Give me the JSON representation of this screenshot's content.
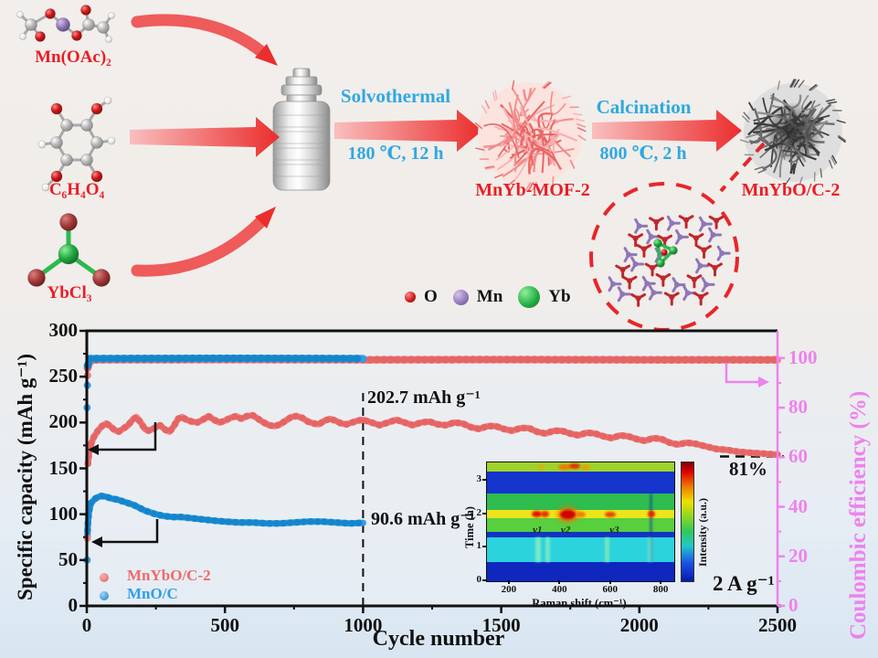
{
  "scheme": {
    "reactants": [
      {
        "label": "Mn(OAc)₂"
      },
      {
        "label": "C₆H₄O₄"
      },
      {
        "label": "YbCl₃"
      }
    ],
    "steps": [
      {
        "name": "Solvothermal",
        "condition": "180 ℃, 12 h"
      },
      {
        "name": "Calcination",
        "condition": "800 ℃, 2 h"
      }
    ],
    "products": [
      {
        "label": "MnYb-MOF-2"
      },
      {
        "label": "MnYbO/C-2"
      }
    ],
    "atom_legend": [
      {
        "symbol": "O",
        "color": "#c1272d"
      },
      {
        "symbol": "Mn",
        "color": "#8f76b8"
      },
      {
        "symbol": "Yb",
        "color": "#2db94d"
      }
    ],
    "colors": {
      "label_red": "#ec1c24",
      "step_blue": "#2fa8e1",
      "arrow_red": "#eb2d2d",
      "dashed_red": "#e8252a"
    }
  },
  "chart_data": {
    "type": "scatter",
    "xlabel": "Cycle number",
    "ylabel_left": "Specific capacity (mAh g⁻¹)",
    "ylabel_right": "Coulombic efficiency (%)",
    "xlim": [
      0,
      2500
    ],
    "ylim_left": [
      0,
      300
    ],
    "ylim_right": [
      0,
      111
    ],
    "xticks": [
      0,
      500,
      1000,
      1500,
      2000,
      2500
    ],
    "yticks_left": [
      0,
      50,
      100,
      150,
      200,
      250,
      300
    ],
    "yticks_right": [
      0,
      20,
      40,
      60,
      80,
      100
    ],
    "grid": false,
    "legend_position": "lower-left",
    "colors": {
      "salmon": "#f28484",
      "salmon_dark": "#e35f5f",
      "blue": "#2d9fe8",
      "blue_dark": "#1380c6",
      "right_axis": "#ee82ee"
    },
    "legend": [
      {
        "label": "MnYbO/C-2",
        "color": "#f28484"
      },
      {
        "label": "MnO/C",
        "color": "#2d9fe8"
      }
    ],
    "annotations": [
      {
        "text": "202.7 mAh g⁻¹"
      },
      {
        "text": "90.6 mAh g⁻¹"
      },
      {
        "text": "81%"
      },
      {
        "text": "2 A g⁻¹"
      }
    ],
    "series": [
      {
        "name": "MnYbO/C-2 capacity",
        "axis": "left",
        "color": "#f28484",
        "points": [
          [
            4,
            155
          ],
          [
            8,
            166
          ],
          [
            15,
            176
          ],
          [
            25,
            184
          ],
          [
            40,
            191
          ],
          [
            55,
            196
          ],
          [
            70,
            199
          ],
          [
            85,
            196
          ],
          [
            100,
            192
          ],
          [
            115,
            190
          ],
          [
            130,
            193
          ],
          [
            150,
            197
          ],
          [
            165,
            203
          ],
          [
            180,
            206
          ],
          [
            195,
            200
          ],
          [
            210,
            193
          ],
          [
            225,
            191
          ],
          [
            245,
            194
          ],
          [
            265,
            197
          ],
          [
            285,
            192
          ],
          [
            300,
            190
          ],
          [
            315,
            196
          ],
          [
            330,
            204
          ],
          [
            345,
            206
          ],
          [
            360,
            203
          ],
          [
            380,
            201
          ],
          [
            400,
            200
          ],
          [
            420,
            203
          ],
          [
            440,
            207
          ],
          [
            460,
            203
          ],
          [
            480,
            200
          ],
          [
            500,
            202
          ],
          [
            520,
            205
          ],
          [
            540,
            207
          ],
          [
            560,
            204
          ],
          [
            580,
            207
          ],
          [
            600,
            208
          ],
          [
            620,
            204
          ],
          [
            640,
            200
          ],
          [
            660,
            197
          ],
          [
            680,
            196
          ],
          [
            700,
            198
          ],
          [
            720,
            202
          ],
          [
            740,
            206
          ],
          [
            760,
            207
          ],
          [
            780,
            205
          ],
          [
            800,
            201
          ],
          [
            820,
            199
          ],
          [
            840,
            198
          ],
          [
            860,
            202
          ],
          [
            880,
            204
          ],
          [
            900,
            202
          ],
          [
            920,
            199
          ],
          [
            940,
            198
          ],
          [
            960,
            200
          ],
          [
            980,
            202
          ],
          [
            1000,
            203
          ],
          [
            1030,
            200
          ],
          [
            1060,
            197
          ],
          [
            1090,
            200
          ],
          [
            1120,
            203
          ],
          [
            1150,
            200
          ],
          [
            1180,
            197
          ],
          [
            1210,
            200
          ],
          [
            1240,
            201
          ],
          [
            1270,
            198
          ],
          [
            1300,
            197
          ],
          [
            1330,
            200
          ],
          [
            1360,
            199
          ],
          [
            1390,
            195
          ],
          [
            1420,
            193
          ],
          [
            1450,
            196
          ],
          [
            1480,
            196
          ],
          [
            1510,
            193
          ],
          [
            1540,
            191
          ],
          [
            1570,
            194
          ],
          [
            1600,
            194
          ],
          [
            1630,
            190
          ],
          [
            1660,
            188
          ],
          [
            1690,
            191
          ],
          [
            1720,
            191
          ],
          [
            1750,
            188
          ],
          [
            1780,
            186
          ],
          [
            1810,
            189
          ],
          [
            1840,
            188
          ],
          [
            1870,
            185
          ],
          [
            1900,
            183
          ],
          [
            1930,
            186
          ],
          [
            1960,
            185
          ],
          [
            1990,
            182
          ],
          [
            2020,
            180
          ],
          [
            2050,
            183
          ],
          [
            2080,
            182
          ],
          [
            2110,
            178
          ],
          [
            2140,
            176
          ],
          [
            2170,
            178
          ],
          [
            2200,
            177
          ],
          [
            2240,
            174
          ],
          [
            2280,
            171
          ],
          [
            2320,
            170
          ],
          [
            2360,
            168
          ],
          [
            2400,
            167
          ],
          [
            2450,
            166
          ],
          [
            2500,
            165
          ]
        ]
      },
      {
        "name": "MnO/C capacity",
        "axis": "left",
        "color": "#2d9fe8",
        "points": [
          [
            2,
            75
          ],
          [
            4,
            90
          ],
          [
            8,
            103
          ],
          [
            15,
            112
          ],
          [
            30,
            117
          ],
          [
            50,
            120
          ],
          [
            70,
            119
          ],
          [
            90,
            117
          ],
          [
            110,
            116
          ],
          [
            130,
            114
          ],
          [
            150,
            112
          ],
          [
            170,
            110
          ],
          [
            190,
            107
          ],
          [
            210,
            104
          ],
          [
            230,
            102
          ],
          [
            250,
            100
          ],
          [
            280,
            98
          ],
          [
            310,
            97
          ],
          [
            340,
            97
          ],
          [
            370,
            96
          ],
          [
            400,
            95
          ],
          [
            430,
            94
          ],
          [
            460,
            93
          ],
          [
            500,
            92
          ],
          [
            550,
            91
          ],
          [
            600,
            91
          ],
          [
            650,
            90
          ],
          [
            700,
            90
          ],
          [
            750,
            91
          ],
          [
            800,
            92
          ],
          [
            850,
            92
          ],
          [
            900,
            91
          ],
          [
            950,
            90
          ],
          [
            1000,
            90.6
          ]
        ]
      },
      {
        "name": "MnYbO/C-2 coulombic efficiency",
        "axis": "right",
        "color": "#f28484",
        "points": [
          [
            3,
            96
          ],
          [
            15,
            99.3
          ],
          [
            500,
            99.4
          ],
          [
            1000,
            99.3
          ],
          [
            1500,
            99.4
          ],
          [
            2000,
            99.3
          ],
          [
            2500,
            99.3
          ]
        ]
      },
      {
        "name": "MnO/C coulombic efficiency",
        "axis": "right",
        "color": "#2d9fe8",
        "points": [
          [
            3,
            97
          ],
          [
            12,
            99.8
          ],
          [
            500,
            99.9
          ],
          [
            1000,
            99.8
          ]
        ]
      }
    ],
    "scatter_extra": [
      {
        "axis": "left",
        "color": "#f28484",
        "points": [
          [
            2,
            74
          ]
        ]
      },
      {
        "axis": "left",
        "color": "#2d9fe8",
        "points": [
          [
            1,
            50
          ]
        ]
      },
      {
        "axis": "right",
        "color": "#f28484",
        "points": [
          [
            3,
            93
          ]
        ]
      },
      {
        "axis": "right",
        "color": "#2d9fe8",
        "points": [
          [
            1,
            80
          ],
          [
            2,
            89
          ]
        ]
      }
    ],
    "guides": {
      "vline_x": 1000,
      "hline_y_left": 163
    }
  },
  "inset": {
    "type": "heatmap",
    "xlabel": "Raman shift (cm⁻¹)",
    "ylabel": "Time (h)",
    "colorbar_label": "Intensity (a.u.)",
    "xlim": [
      110,
      850
    ],
    "ylim": [
      0,
      3.55
    ],
    "xticks": [
      200,
      400,
      600,
      800
    ],
    "yticks": [
      0,
      1,
      2,
      3
    ],
    "peak_labels": [
      "ν1",
      "ν2",
      "ν3"
    ],
    "peak_positions_cm": [
      320,
      425,
      620
    ]
  }
}
